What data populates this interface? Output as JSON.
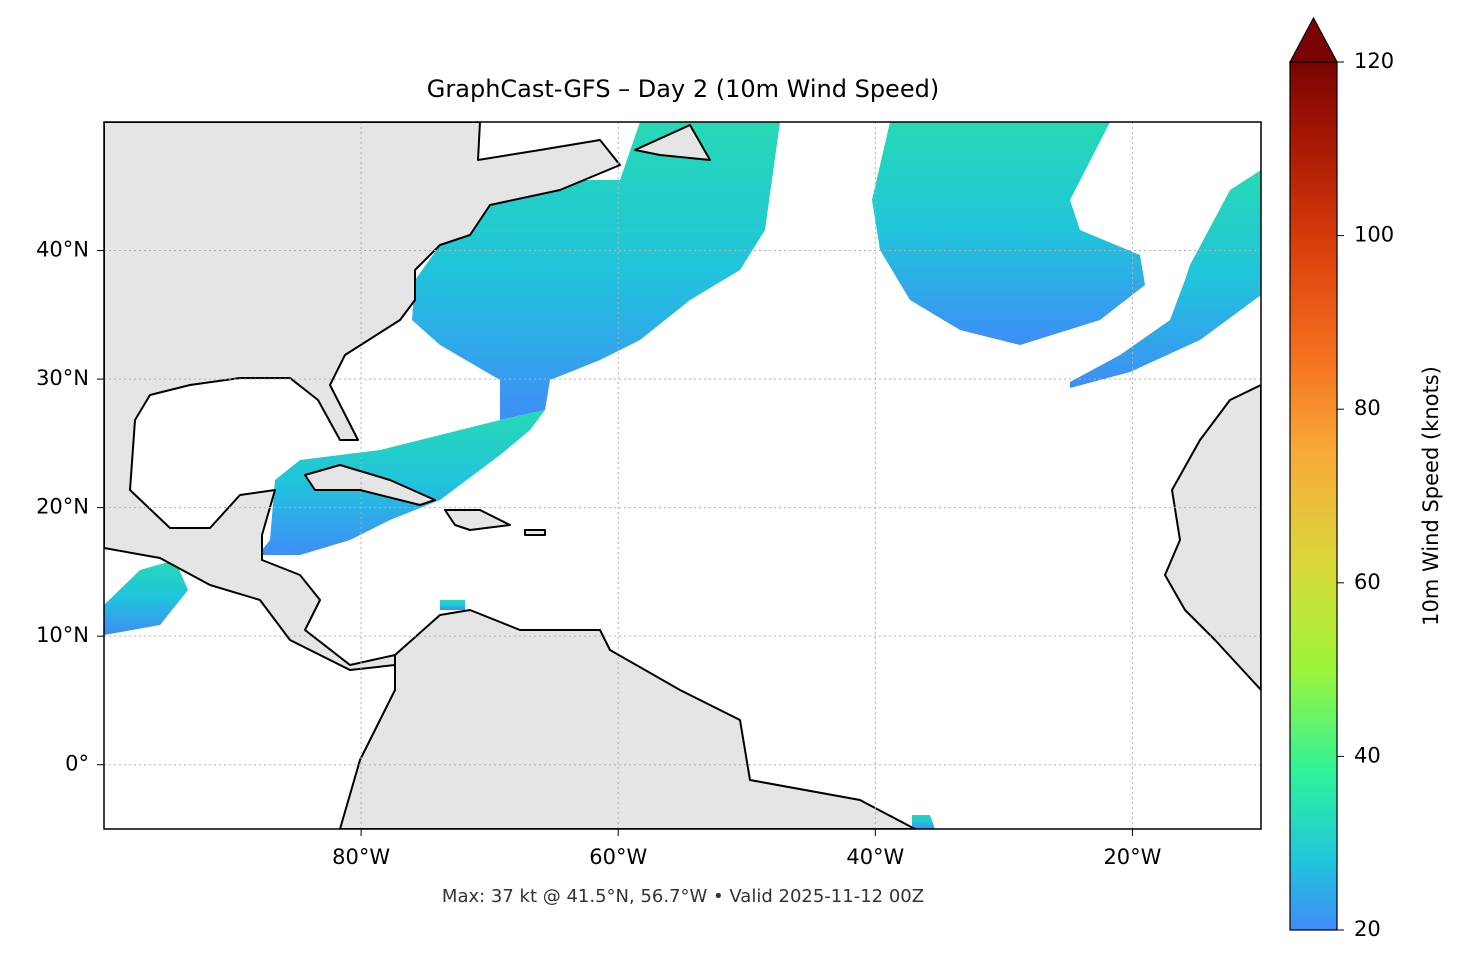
{
  "map": {
    "title": "GraphCast-GFS – Day 2 (10m Wind Speed)",
    "lon_range": [
      -100,
      -10
    ],
    "lat_range": [
      -5,
      50
    ],
    "lon_ticks": [
      {
        "value": -80,
        "label": "80°W"
      },
      {
        "value": -60,
        "label": "60°W"
      },
      {
        "value": -40,
        "label": "40°W"
      },
      {
        "value": -20,
        "label": "20°W"
      }
    ],
    "lat_ticks": [
      {
        "value": 0,
        "label": "0°"
      },
      {
        "value": 10,
        "label": "10°N"
      },
      {
        "value": 20,
        "label": "20°N"
      },
      {
        "value": 30,
        "label": "30°N"
      },
      {
        "value": 40,
        "label": "40°N"
      }
    ],
    "colorbar": {
      "label": "10m Wind Speed (knots)",
      "lim": [
        20,
        120
      ],
      "ticks": [
        20,
        40,
        60,
        80,
        100,
        120
      ]
    },
    "footer": "Max: 37 kt @ 41.5°N, 56.7°W • Valid 2025-11-12 00Z"
  }
}
